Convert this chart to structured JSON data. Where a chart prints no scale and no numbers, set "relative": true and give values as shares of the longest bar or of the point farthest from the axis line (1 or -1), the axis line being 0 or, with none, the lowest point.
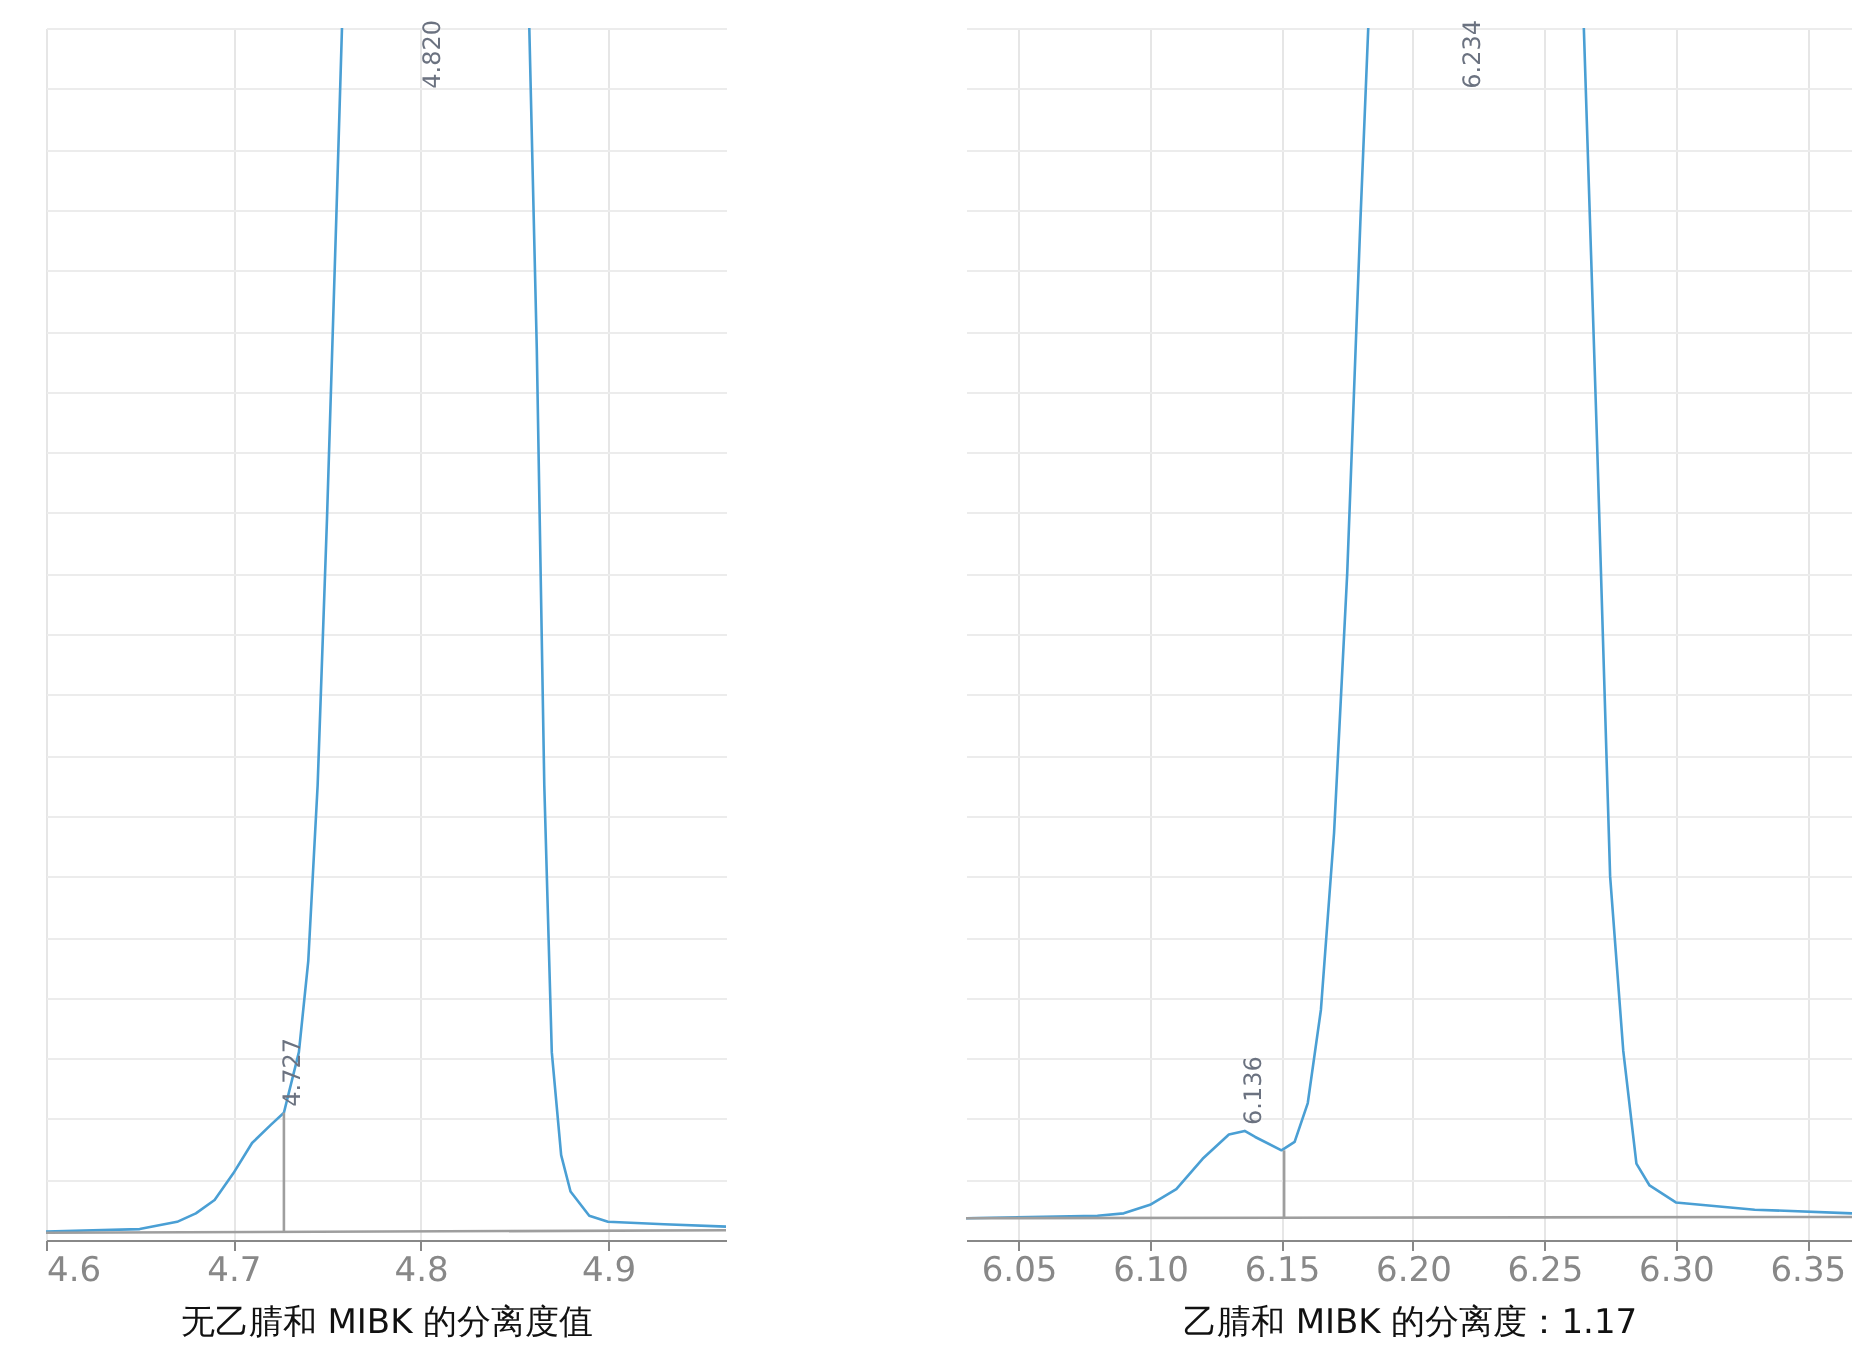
{
  "chart_data": [
    {
      "type": "line",
      "xlabel": "无乙腈和 MIBK 的分离度值",
      "relative": true,
      "xlim": [
        4.6,
        4.963
      ],
      "xticks": [
        4.6,
        4.7,
        4.8,
        4.9
      ],
      "grid": true,
      "series": [
        {
          "color": "#4a9fd4",
          "x": [
            4.6,
            4.65,
            4.67,
            4.68,
            4.69,
            4.7,
            4.71,
            4.72,
            4.727,
            4.735,
            4.74,
            4.745,
            4.75,
            4.755,
            4.758,
            4.8,
            4.858,
            4.862,
            4.866,
            4.87,
            4.875,
            4.88,
            4.89,
            4.9,
            4.93,
            4.963
          ],
          "values": [
            0.007,
            0.009,
            0.015,
            0.022,
            0.033,
            0.055,
            0.08,
            0.095,
            0.105,
            0.155,
            0.23,
            0.375,
            0.595,
            0.845,
            1,
            null,
            1,
            0.735,
            0.375,
            0.155,
            0.07,
            0.04,
            0.02,
            0.015,
            0.013,
            0.011
          ]
        },
        {
          "color": "#9e9e9e",
          "x": [
            4.6,
            4.963
          ],
          "values": [
            0.006,
            0.008
          ]
        },
        {
          "color": "#9e9e9e",
          "x": [
            4.727,
            4.727
          ],
          "values": [
            0.006,
            0.105
          ]
        }
      ],
      "annotations": [
        {
          "text": "4.727",
          "x": 4.727,
          "y": 0.105
        },
        "4.820"
      ]
    },
    {
      "type": "line",
      "xlabel": "乙腈和 MIBK 的分离度：1.17",
      "relative": true,
      "xlim": [
        6.03,
        6.367
      ],
      "xticks": [
        {
          "value": 6.05,
          "label": "6.05"
        },
        {
          "value": 6.1,
          "label": "6.10"
        },
        {
          "value": 6.15,
          "label": "6.15"
        },
        {
          "value": 6.2,
          "label": "6.20"
        },
        {
          "value": 6.25,
          "label": "6.25"
        },
        {
          "value": 6.3,
          "label": "6.30"
        },
        {
          "value": 6.35,
          "label": "6.35"
        }
      ],
      "grid": true,
      "series": [
        {
          "color": "#4a9fd4",
          "x": [
            6.03,
            6.08,
            6.09,
            6.1,
            6.11,
            6.12,
            6.13,
            6.136,
            6.14,
            6.15,
            6.155,
            6.16,
            6.165,
            6.17,
            6.175,
            6.18,
            6.183,
            6.234,
            6.265,
            6.27,
            6.275,
            6.28,
            6.285,
            6.29,
            6.3,
            6.33,
            6.367
          ],
          "values": [
            0.018,
            0.02,
            0.022,
            0.029,
            0.042,
            0.067,
            0.087,
            0.09,
            0.085,
            0.074,
            0.081,
            0.113,
            0.19,
            0.336,
            0.55,
            0.84,
            1,
            null,
            1,
            0.66,
            0.3,
            0.156,
            0.063,
            0.045,
            0.031,
            0.025,
            0.022
          ]
        },
        {
          "color": "#9e9e9e",
          "x": [
            6.03,
            6.367
          ],
          "values": [
            0.018,
            0.019
          ]
        },
        {
          "color": "#9e9e9e",
          "x": [
            6.151,
            6.151
          ],
          "values": [
            0.018,
            0.074
          ]
        }
      ],
      "annotations": [
        {
          "text": "6.136",
          "x": 6.136,
          "y": 0.09
        },
        "6.234"
      ]
    }
  ]
}
